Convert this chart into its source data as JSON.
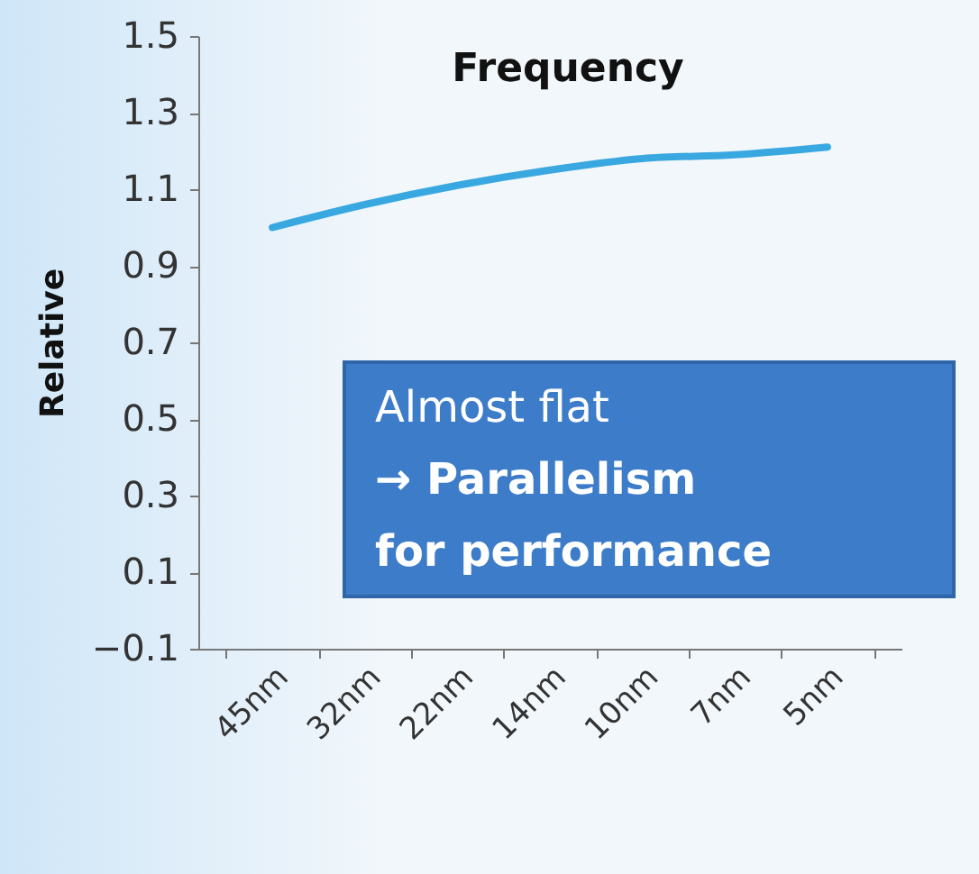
{
  "chart_data": {
    "type": "line",
    "title": "Frequency",
    "ylabel": "Relative",
    "categories": [
      "45nm",
      "32nm",
      "22nm",
      "14nm",
      "10nm",
      "7nm",
      "5nm"
    ],
    "series": [
      {
        "color": "#3aa8e0",
        "values": [
          1.0,
          1.06,
          1.11,
          1.15,
          1.18,
          1.19,
          1.21
        ]
      }
    ],
    "ylim": [
      -0.1,
      1.5
    ],
    "yticks": [
      -0.1,
      0.1,
      0.3,
      0.5,
      0.7,
      0.9,
      1.1,
      1.3,
      1.5
    ],
    "grid": false,
    "marker": "none",
    "line_style": "solid",
    "annotations": [
      "Almost flat\n→ Parallelism\nfor performance"
    ]
  }
}
